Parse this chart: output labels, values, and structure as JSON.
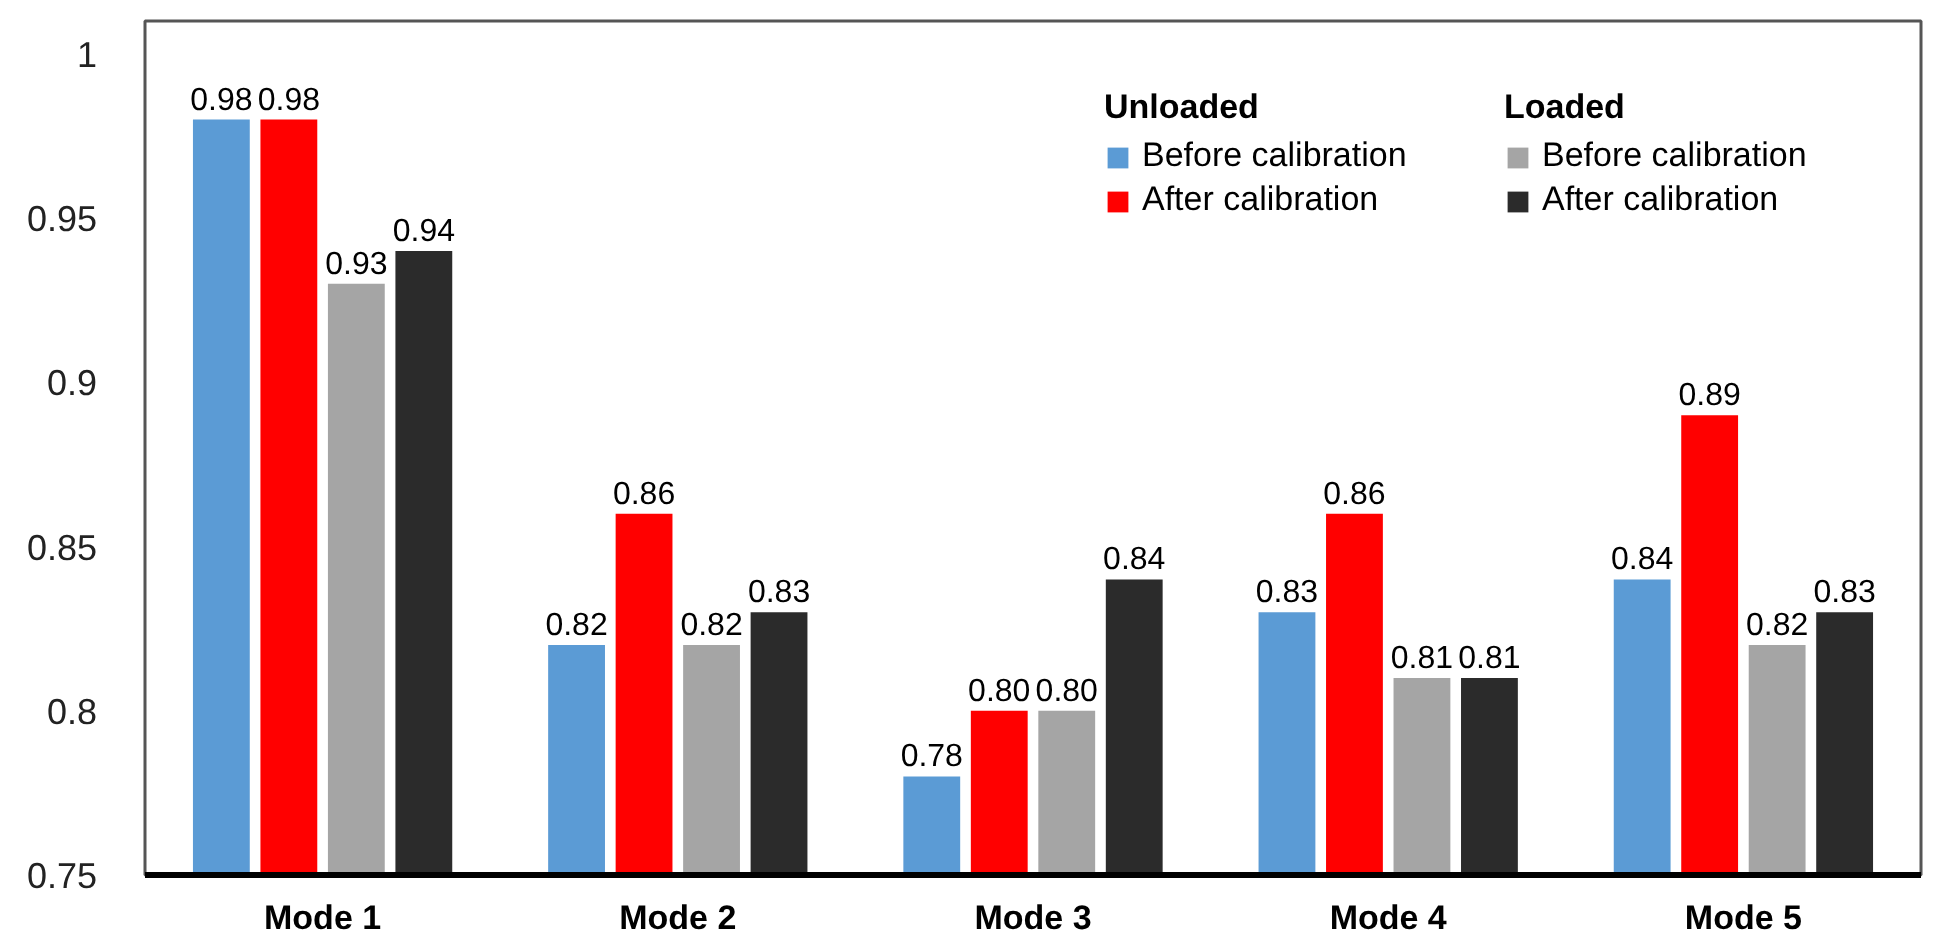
{
  "chart_data": {
    "type": "bar",
    "categories": [
      "Mode 1",
      "Mode 2",
      "Mode 3",
      "Mode 4",
      "Mode 5"
    ],
    "series": [
      {
        "name": "Before calibration",
        "color": "#5b9bd5",
        "values": [
          0.98,
          0.82,
          0.78,
          0.83,
          0.84
        ],
        "value_labels": [
          "0.98",
          "0.82",
          "0.78",
          "0.83",
          "0.84"
        ]
      },
      {
        "name": "After calibration",
        "color": "#ff0000",
        "values": [
          0.98,
          0.86,
          0.8,
          0.86,
          0.89
        ],
        "value_labels": [
          "0.98",
          "0.86",
          "0.80",
          "0.86",
          "0.89"
        ]
      },
      {
        "name": "Before calibration",
        "color": "#a5a5a5",
        "values": [
          0.93,
          0.82,
          0.8,
          0.81,
          0.82
        ],
        "value_labels": [
          "0.93",
          "0.82",
          "0.80",
          "0.81",
          "0.82"
        ]
      },
      {
        "name": "After calibration",
        "color": "#2b2b2b",
        "values": [
          0.94,
          0.83,
          0.84,
          0.81,
          0.83
        ],
        "value_labels": [
          "0.94",
          "0.83",
          "0.84",
          "0.81",
          "0.83"
        ]
      }
    ],
    "ylim": [
      0.75,
      1.01
    ],
    "yticks": [
      0.75,
      0.8,
      0.85,
      0.9,
      0.95,
      1
    ],
    "legend": "top right",
    "annotations": [
      "Unloaded",
      "Loaded"
    ]
  }
}
